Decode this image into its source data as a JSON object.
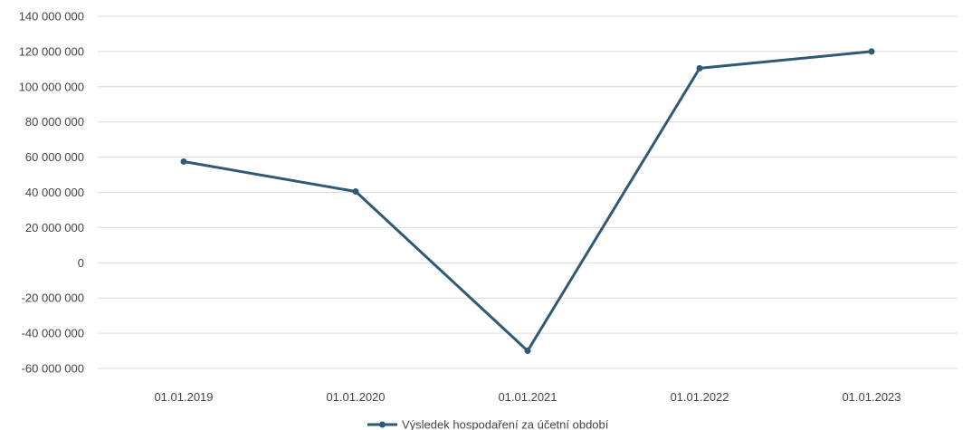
{
  "chart_data": {
    "type": "line",
    "title": "",
    "xlabel": "",
    "ylabel": "",
    "categories": [
      "01.01.2019",
      "01.01.2020",
      "01.01.2021",
      "01.01.2022",
      "01.01.2023"
    ],
    "ylim": [
      -60000000,
      140000000
    ],
    "yticks": [
      140000000,
      120000000,
      100000000,
      80000000,
      60000000,
      40000000,
      20000000,
      0,
      -20000000,
      -40000000,
      -60000000
    ],
    "ytick_labels": [
      "140 000 000",
      "120 000 000",
      "100 000 000",
      "80 000 000",
      "60 000 000",
      "40 000 000",
      "20 000 000",
      "0",
      "-20 000 000",
      "-40 000 000",
      "-60 000 000"
    ],
    "grid": true,
    "legend_position": "bottom",
    "series": [
      {
        "name": "Výsledek hospodaření za účetní období",
        "color": "#2f5a76",
        "values": [
          57500000,
          40500000,
          -50000000,
          110500000,
          120000000
        ]
      }
    ]
  }
}
